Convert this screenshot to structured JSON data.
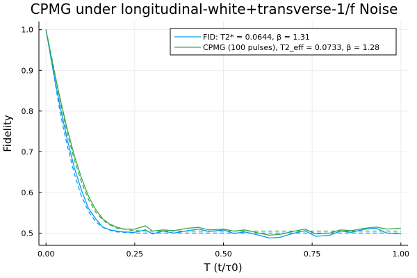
{
  "chart_data": {
    "type": "line",
    "title": "CPMG under longitudinal-white+transverse-1/f Noise",
    "xlabel": "T (t/τ0)",
    "ylabel": "Fidelity",
    "xlim": [
      -0.02,
      1.02
    ],
    "ylim": [
      0.47,
      1.02
    ],
    "xticks": [
      0.0,
      0.25,
      0.5,
      0.75,
      1.0
    ],
    "xtick_labels": [
      "0.00",
      "0.25",
      "0.50",
      "0.75",
      "1.00"
    ],
    "yticks": [
      0.5,
      0.6,
      0.7,
      0.8,
      0.9,
      1.0
    ],
    "ytick_labels": [
      "0.5",
      "0.6",
      "0.7",
      "0.8",
      "0.9",
      "1.0"
    ],
    "grid": true,
    "legend_position": "top-right",
    "series": [
      {
        "name": "FID: T2* = 0.0644, β = 1.31",
        "color": "#009AFA",
        "style": "solid",
        "x": [
          0.0,
          0.02,
          0.04,
          0.06,
          0.08,
          0.1,
          0.12,
          0.14,
          0.16,
          0.18,
          0.2,
          0.22,
          0.25,
          0.28,
          0.3,
          0.33,
          0.36,
          0.4,
          0.43,
          0.46,
          0.5,
          0.53,
          0.56,
          0.6,
          0.63,
          0.66,
          0.7,
          0.73,
          0.76,
          0.8,
          0.83,
          0.86,
          0.9,
          0.93,
          0.96,
          1.0
        ],
        "y": [
          1.0,
          0.9,
          0.81,
          0.73,
          0.66,
          0.605,
          0.56,
          0.535,
          0.515,
          0.508,
          0.505,
          0.503,
          0.502,
          0.508,
          0.498,
          0.505,
          0.5,
          0.506,
          0.51,
          0.504,
          0.508,
          0.499,
          0.503,
          0.495,
          0.488,
          0.49,
          0.5,
          0.506,
          0.492,
          0.495,
          0.505,
          0.502,
          0.51,
          0.512,
          0.5,
          0.498
        ]
      },
      {
        "name": "",
        "color": "#009AFA",
        "style": "dashed",
        "x": [
          0.0,
          0.02,
          0.04,
          0.06,
          0.08,
          0.1,
          0.12,
          0.14,
          0.16,
          0.18,
          0.2,
          0.25,
          0.3,
          0.4,
          0.5,
          0.6,
          0.7,
          0.8,
          0.9,
          1.0
        ],
        "y": [
          1.0,
          0.9,
          0.795,
          0.715,
          0.645,
          0.59,
          0.553,
          0.528,
          0.514,
          0.507,
          0.503,
          0.5,
          0.5,
          0.5,
          0.5,
          0.5,
          0.5,
          0.5,
          0.5,
          0.5
        ]
      },
      {
        "name": "CPMG (100 pulses), T2_eff = 0.0733, β = 1.28",
        "color": "#3DA44D",
        "style": "solid",
        "x": [
          0.0,
          0.02,
          0.04,
          0.06,
          0.08,
          0.1,
          0.12,
          0.14,
          0.16,
          0.18,
          0.2,
          0.22,
          0.25,
          0.28,
          0.3,
          0.33,
          0.36,
          0.4,
          0.43,
          0.46,
          0.5,
          0.53,
          0.56,
          0.6,
          0.63,
          0.66,
          0.7,
          0.73,
          0.76,
          0.8,
          0.83,
          0.86,
          0.9,
          0.93,
          0.96,
          1.0
        ],
        "y": [
          1.0,
          0.91,
          0.83,
          0.755,
          0.69,
          0.635,
          0.59,
          0.558,
          0.535,
          0.522,
          0.515,
          0.51,
          0.51,
          0.518,
          0.505,
          0.508,
          0.506,
          0.512,
          0.514,
          0.508,
          0.51,
          0.505,
          0.508,
          0.5,
          0.495,
          0.497,
          0.505,
          0.51,
          0.498,
          0.5,
          0.508,
          0.506,
          0.512,
          0.515,
          0.51,
          0.512
        ]
      },
      {
        "name": "",
        "color": "#3DA44D",
        "style": "dashed",
        "x": [
          0.0,
          0.02,
          0.04,
          0.06,
          0.08,
          0.1,
          0.12,
          0.14,
          0.16,
          0.18,
          0.2,
          0.25,
          0.3,
          0.4,
          0.5,
          0.6,
          0.7,
          0.8,
          0.9,
          1.0
        ],
        "y": [
          1.0,
          0.915,
          0.825,
          0.745,
          0.68,
          0.625,
          0.582,
          0.552,
          0.532,
          0.52,
          0.512,
          0.506,
          0.505,
          0.505,
          0.505,
          0.505,
          0.505,
          0.505,
          0.505,
          0.505
        ]
      }
    ]
  }
}
